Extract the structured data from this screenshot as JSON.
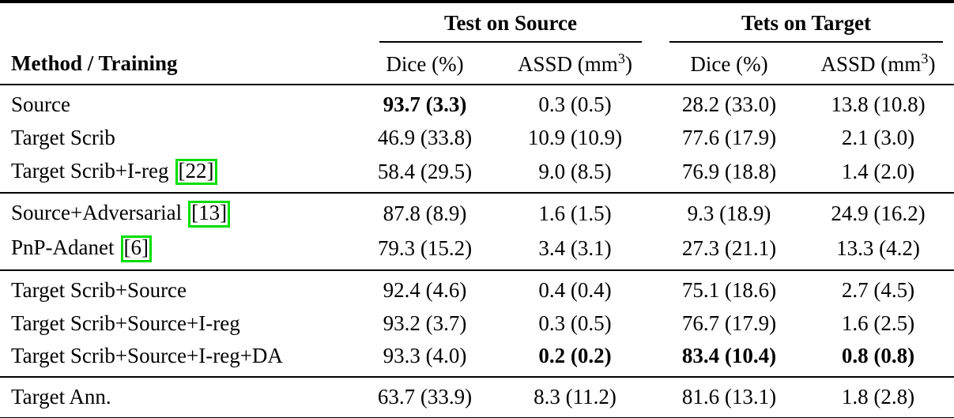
{
  "colors": {
    "citation_box_green": "#00dd00",
    "text": "#000000",
    "background": "#ffffff"
  },
  "table": {
    "group_headers": [
      {
        "label": "Test on Source"
      },
      {
        "label": "Tets on Target"
      }
    ],
    "method_col_header": "Method / Training",
    "sub_headers": [
      {
        "pre": "Dice (%)",
        "sup": "",
        "post": ""
      },
      {
        "pre": "ASSD (mm",
        "sup": "3",
        "post": ")"
      },
      {
        "pre": "Dice (%)",
        "sup": "",
        "post": ""
      },
      {
        "pre": "ASSD (mm",
        "sup": "3",
        "post": ")"
      }
    ],
    "sections": [
      {
        "rows": [
          {
            "method": "Source",
            "cite": "",
            "values": [
              "93.7 (3.3)",
              "0.3 (0.5)",
              "28.2 (33.0)",
              "13.8 (10.8)"
            ]
          },
          {
            "method": "Target Scrib",
            "cite": "",
            "values": [
              "46.9 (33.8)",
              "10.9 (10.9)",
              "77.6 (17.9)",
              "2.1 (3.0)"
            ]
          },
          {
            "method": "Target Scrib+I-reg",
            "cite": "[22]",
            "values": [
              "58.4 (29.5)",
              "9.0 (8.5)",
              "76.9 (18.8)",
              "1.4 (2.0)"
            ]
          }
        ]
      },
      {
        "rows": [
          {
            "method": "Source+Adversarial",
            "cite": "[13]",
            "values": [
              "87.8 (8.9)",
              "1.6 (1.5)",
              "9.3 (18.9)",
              "24.9 (16.2)"
            ]
          },
          {
            "method": "PnP-Adanet",
            "cite": "[6]",
            "values": [
              "79.3 (15.2)",
              "3.4 (3.1)",
              "27.3 (21.1)",
              "13.3 (4.2)"
            ]
          }
        ]
      },
      {
        "rows": [
          {
            "method": "Target Scrib+Source",
            "cite": "",
            "values": [
              "92.4 (4.6)",
              "0.4 (0.4)",
              "75.1 (18.6)",
              "2.7 (4.5)"
            ]
          },
          {
            "method": "Target Scrib+Source+I-reg",
            "cite": "",
            "values": [
              "93.2 (3.7)",
              "0.3 (0.5)",
              "76.7 (17.9)",
              "1.6 (2.5)"
            ]
          },
          {
            "method": "Target Scrib+Source+I-reg+DA",
            "cite": "",
            "values": [
              "93.3 (4.0)",
              "0.2 (0.2)",
              "83.4 (10.4)",
              "0.8 (0.8)"
            ]
          }
        ]
      },
      {
        "rows": [
          {
            "method": "Target Ann.",
            "cite": "",
            "values": [
              "63.7 (33.9)",
              "8.3 (11.2)",
              "81.6 (13.1)",
              "1.8 (2.8)"
            ]
          }
        ]
      }
    ]
  }
}
